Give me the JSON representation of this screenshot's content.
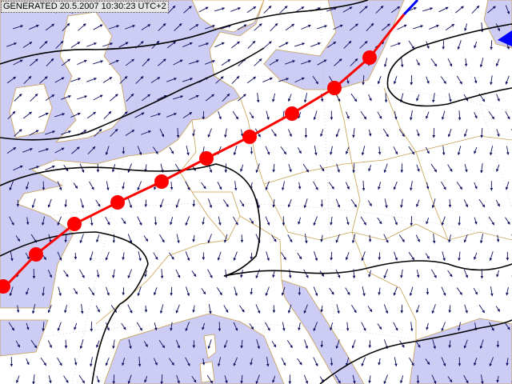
{
  "header": {
    "stamp": "GENERATED 20.5.2007 10:30:23 UTC+2"
  }
}
